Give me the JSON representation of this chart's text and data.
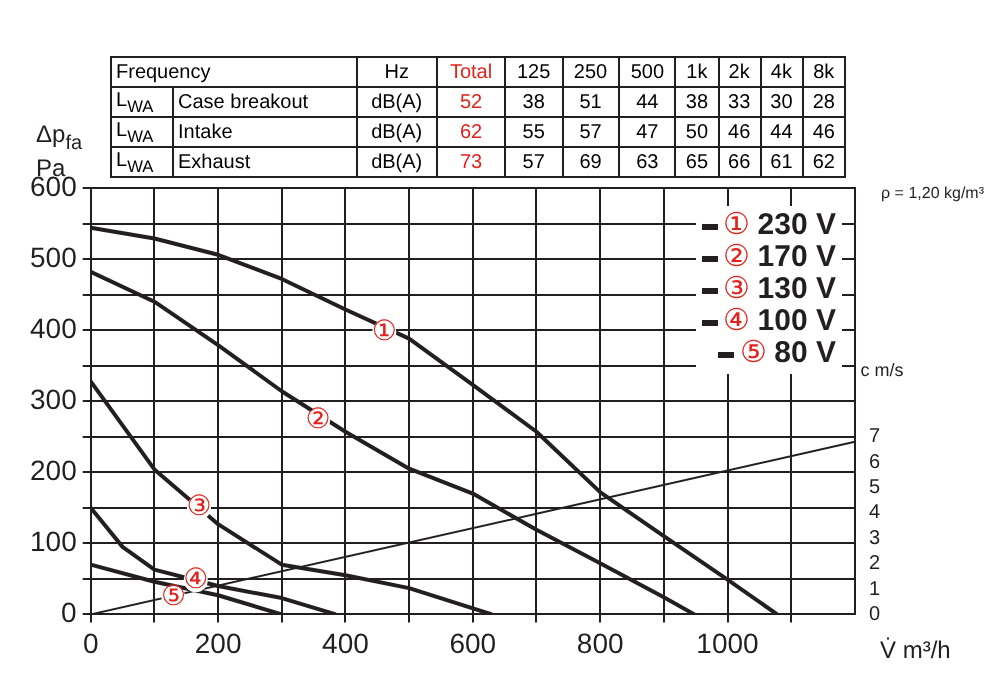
{
  "chart_data": {
    "type": "line",
    "xlabel": "V̇ m³/h",
    "ylabel": "Δp$_{fa}$ Pa",
    "y2label": "c m/s",
    "xlim": [
      0,
      1200
    ],
    "ylim": [
      0,
      600
    ],
    "y2lim": [
      0,
      16.8
    ],
    "xticks": [
      0,
      {
        "value": 100,
        "label": null
      },
      200,
      {
        "value": 300,
        "label": null
      },
      400,
      {
        "value": 500,
        "label": null
      },
      600,
      {
        "value": 700,
        "label": null
      },
      800,
      {
        "value": 900,
        "label": null
      },
      1000,
      {
        "value": 1100,
        "label": null
      }
    ],
    "yticks": [
      0,
      {
        "value": 50,
        "label": null
      },
      100,
      {
        "value": 150,
        "label": null
      },
      200,
      {
        "value": 250,
        "label": null
      },
      300,
      {
        "value": 350,
        "label": null
      },
      400,
      {
        "value": 450,
        "label": null
      },
      500,
      {
        "value": 550,
        "label": null
      },
      600
    ],
    "y2ticks": [
      0,
      1,
      2,
      3,
      4,
      5,
      6,
      7
    ],
    "grid": true,
    "legend": "top right",
    "marker": "none",
    "line_style": "solid",
    "series": [
      {
        "name": "① 230 V",
        "color": "#231f20",
        "x": [
          0,
          100,
          200,
          300,
          400,
          500,
          600,
          700,
          800,
          900,
          1000,
          1078
        ],
        "values": [
          544,
          529,
          506,
          472,
          429,
          388,
          323,
          257,
          172,
          110,
          49,
          0
        ]
      },
      {
        "name": "② 170 V",
        "color": "#231f20",
        "x": [
          0,
          100,
          200,
          300,
          400,
          500,
          600,
          700,
          800,
          900,
          948
        ],
        "values": [
          482,
          440,
          379,
          314,
          257,
          205,
          170,
          119,
          72,
          24,
          0
        ]
      },
      {
        "name": "③ 130 V",
        "color": "#231f20",
        "x": [
          0,
          100,
          200,
          300,
          400,
          500,
          630
        ],
        "values": [
          328,
          204,
          127,
          70,
          55,
          37,
          0
        ]
      },
      {
        "name": "④ 100 V",
        "color": "#231f20",
        "x": [
          0,
          50,
          100,
          200,
          300,
          385
        ],
        "values": [
          150,
          95,
          63,
          40,
          23,
          0
        ]
      },
      {
        "name": "⑤ 80 V",
        "color": "#231f20",
        "x": [
          0,
          100,
          200,
          300
        ],
        "values": [
          70,
          46,
          27,
          0
        ]
      },
      {
        "color": "#231f20",
        "axis": "y2",
        "x": [
          0,
          1200
        ],
        "values": [
          0,
          6.8
        ]
      }
    ],
    "annotations": [
      "Frequency",
      "Hz",
      "Total",
      "125",
      "250",
      "500",
      "1k",
      "2k",
      "4k",
      "8k",
      "L$_{WA}$",
      "Case breakout",
      "dB(A)",
      "52",
      "38",
      "51",
      "44",
      "38",
      "33",
      "30",
      "28",
      "L$_{WA}$",
      "Intake",
      "dB(A)",
      "62",
      "55",
      "57",
      "47",
      "50",
      "46",
      "44",
      "46",
      "L$_{WA}$",
      "Exhaust",
      "dB(A)",
      "73",
      "57",
      "69",
      "63",
      "65",
      "66",
      "61",
      "62",
      "ρ = 1,20 kg/m³",
      {
        "text": "①",
        "x": 461,
        "y": 397
      },
      {
        "text": "②",
        "x": 357,
        "y": 273
      },
      {
        "text": "③",
        "x": 170,
        "y": 150
      },
      {
        "text": "④",
        "x": 165,
        "y": 48
      },
      {
        "text": "⑤",
        "x": 130,
        "y": 23
      }
    ]
  }
}
